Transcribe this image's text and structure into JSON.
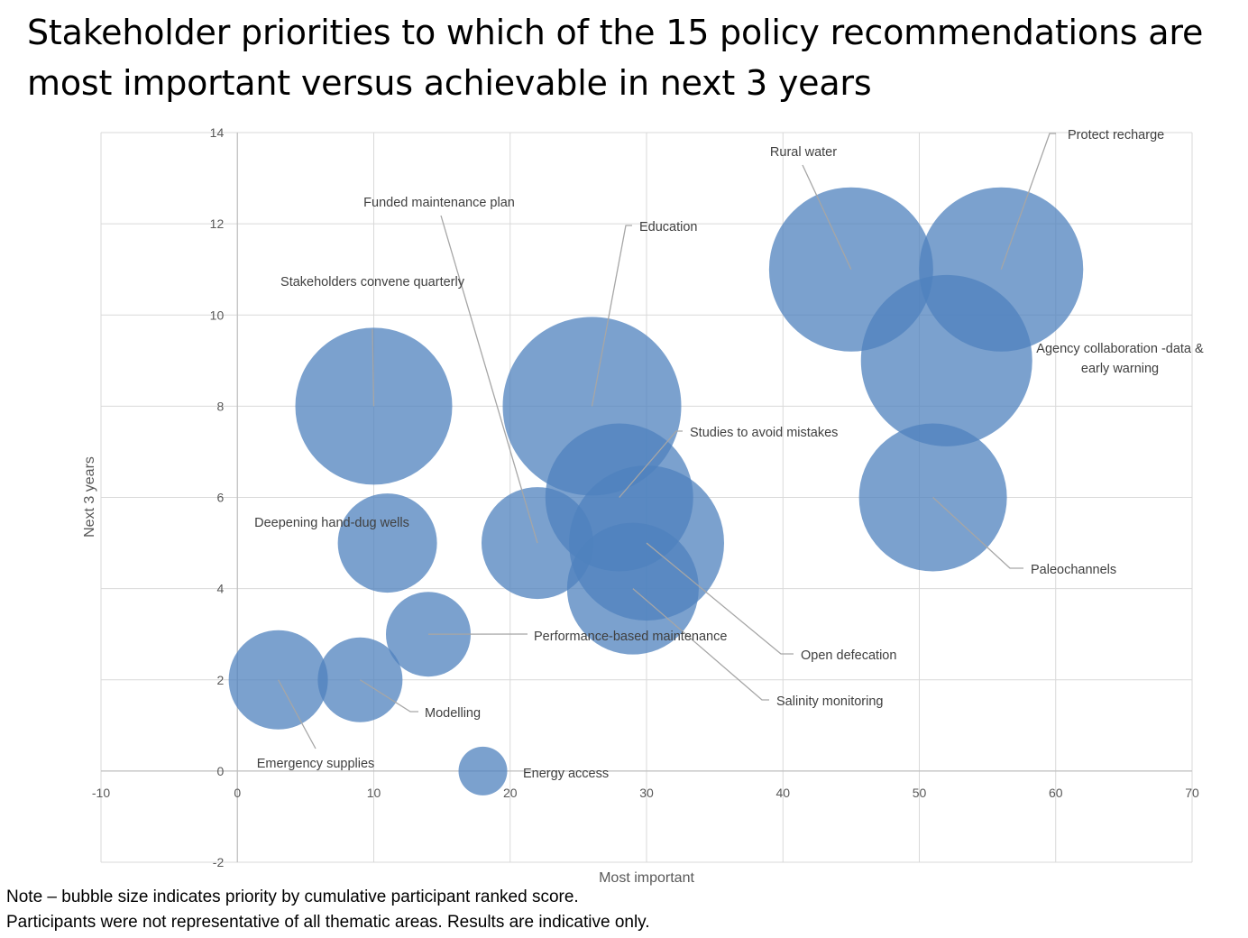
{
  "title_line1": "Stakeholder priorities to which of the 15 policy recommendations are",
  "title_line2": "most important versus achievable in next 3 years",
  "notes": [
    "Note – bubble size indicates priority by cumulative participant ranked score.",
    "Participants were not representative of all thematic areas. Results are indicative only."
  ],
  "chart_data": {
    "type": "bubble",
    "title": "Stakeholder priorities to which of the 15 policy recommendations are most important versus achievable in next 3 years",
    "xlabel": "Most important",
    "ylabel": "Next 3 years",
    "xlim": [
      -10,
      70
    ],
    "ylim": [
      -2,
      14
    ],
    "xticks": [
      -10,
      0,
      10,
      20,
      30,
      40,
      50,
      60,
      70
    ],
    "yticks": [
      -2,
      0,
      2,
      4,
      6,
      8,
      10,
      12,
      14
    ],
    "grid": true,
    "bubble_color": "#4F81BD",
    "size_meaning": "priority by cumulative participant ranked score (relative)",
    "points": [
      {
        "label": "Rural water",
        "x": 45,
        "y": 11,
        "size": 91
      },
      {
        "label": "Protect recharge",
        "x": 56,
        "y": 11,
        "size": 91
      },
      {
        "label": "Agency collaboration -data & early warning",
        "x": 52,
        "y": 9,
        "size": 95
      },
      {
        "label": "Paleochannels",
        "x": 51,
        "y": 6,
        "size": 82
      },
      {
        "label": "Education",
        "x": 26,
        "y": 8,
        "size": 99
      },
      {
        "label": "Stakeholders convene quarterly",
        "x": 10,
        "y": 8,
        "size": 87
      },
      {
        "label": "Studies to avoid mistakes",
        "x": 28,
        "y": 6,
        "size": 82
      },
      {
        "label": "Open defecation",
        "x": 30,
        "y": 5,
        "size": 86
      },
      {
        "label": "Salinity monitoring",
        "x": 29,
        "y": 4,
        "size": 73
      },
      {
        "label": "Funded maintenance plan",
        "x": 22,
        "y": 5,
        "size": 62
      },
      {
        "label": "Deepening hand-dug wells",
        "x": 11,
        "y": 5,
        "size": 55
      },
      {
        "label": "Performance-based maintenance",
        "x": 14,
        "y": 3,
        "size": 47
      },
      {
        "label": "Modelling",
        "x": 9,
        "y": 2,
        "size": 47
      },
      {
        "label": "Emergency supplies",
        "x": 3,
        "y": 2,
        "size": 55
      },
      {
        "label": "Energy access",
        "x": 18,
        "y": 0,
        "size": 27
      }
    ]
  }
}
